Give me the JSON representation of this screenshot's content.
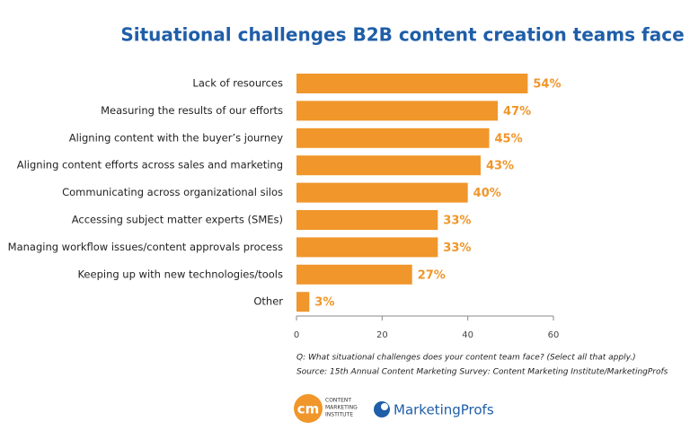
{
  "chart_data": {
    "type": "bar",
    "orientation": "horizontal",
    "title": "Situational challenges B2B content creation teams face",
    "categories": [
      "Lack of resources",
      "Measuring the results of our efforts",
      "Aligning content with the buyer’s journey",
      "Aligning content efforts across sales and marketing",
      "Communicating across organizational silos",
      "Accessing subject matter experts (SMEs)",
      "Managing workflow issues/content approvals process",
      "Keeping up with new technologies/tools",
      "Other"
    ],
    "values": [
      54,
      47,
      45,
      43,
      40,
      33,
      33,
      27,
      3
    ],
    "value_labels": [
      "54%",
      "47%",
      "45%",
      "43%",
      "40%",
      "33%",
      "33%",
      "27%",
      "3%"
    ],
    "color": "#f0962a",
    "xlim": [
      0,
      60
    ],
    "xticks": [
      0,
      20,
      40,
      60
    ],
    "grid": false,
    "notes": [
      "Q: What situational challenges does your content team face? (Select all that apply.)",
      "Source: 15th Annual Content Marketing Survey: Content Marketing Institute/MarketingProfs"
    ]
  },
  "logos": {
    "cmi_mark": "cm",
    "cmi_lines": [
      "CONTENT",
      "MARKETING",
      "INSTITUTE"
    ],
    "mp": "MarketingProfs"
  }
}
